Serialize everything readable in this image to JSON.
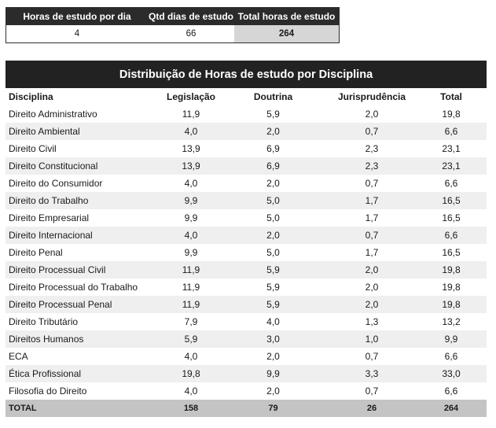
{
  "summary": {
    "headers": [
      "Horas de estudo por dia",
      "Qtd dias de estudo",
      "Total horas de estudo"
    ],
    "values": [
      "4",
      "66",
      "264"
    ]
  },
  "distribution": {
    "title": "Distribuição de Horas de estudo por Disciplina",
    "headers": [
      "Disciplina",
      "Legislação",
      "Doutrina",
      "Jurisprudência",
      "Total"
    ],
    "rows": [
      [
        "Direito Administrativo",
        "11,9",
        "5,9",
        "2,0",
        "19,8"
      ],
      [
        "Direito Ambiental",
        "4,0",
        "2,0",
        "0,7",
        "6,6"
      ],
      [
        "Direito Civil",
        "13,9",
        "6,9",
        "2,3",
        "23,1"
      ],
      [
        "Direito Constitucional",
        "13,9",
        "6,9",
        "2,3",
        "23,1"
      ],
      [
        "Direito do Consumidor",
        "4,0",
        "2,0",
        "0,7",
        "6,6"
      ],
      [
        "Direito do Trabalho",
        "9,9",
        "5,0",
        "1,7",
        "16,5"
      ],
      [
        "Direito Empresarial",
        "9,9",
        "5,0",
        "1,7",
        "16,5"
      ],
      [
        "Direito Internacional",
        "4,0",
        "2,0",
        "0,7",
        "6,6"
      ],
      [
        "Direito Penal",
        "9,9",
        "5,0",
        "1,7",
        "16,5"
      ],
      [
        "Direito Processual Civil",
        "11,9",
        "5,9",
        "2,0",
        "19,8"
      ],
      [
        "Direito Processual do Trabalho",
        "11,9",
        "5,9",
        "2,0",
        "19,8"
      ],
      [
        "Direito Processual Penal",
        "11,9",
        "5,9",
        "2,0",
        "19,8"
      ],
      [
        "Direito Tributário",
        "7,9",
        "4,0",
        "1,3",
        "13,2"
      ],
      [
        "Direitos Humanos",
        "5,9",
        "3,0",
        "1,0",
        "9,9"
      ],
      [
        "ECA",
        "4,0",
        "2,0",
        "0,7",
        "6,6"
      ],
      [
        "Ética Profissional",
        "19,8",
        "9,9",
        "3,3",
        "33,0"
      ],
      [
        "Filosofia do Direito",
        "4,0",
        "2,0",
        "0,7",
        "6,6"
      ]
    ],
    "total": [
      "TOTAL",
      "158",
      "79",
      "26",
      "264"
    ]
  }
}
